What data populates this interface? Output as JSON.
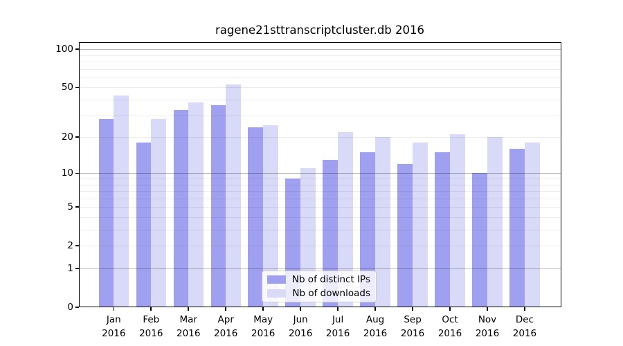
{
  "title": "ragene21sttranscriptcluster.db 2016",
  "legend": {
    "items": [
      {
        "label": "Nb of distinct IPs",
        "color": "#a0a0f0"
      },
      {
        "label": "Nb of downloads",
        "color": "#d9d9f8"
      }
    ]
  },
  "colors": {
    "distinct_ips_bar": "#a0a0f0",
    "downloads_bar": "#d9d9f8",
    "axis": "#000000",
    "background": "#ffffff"
  },
  "chart_data": {
    "type": "bar",
    "title": "ragene21sttranscriptcluster.db 2016",
    "categories": [
      "Jan",
      "Feb",
      "Mar",
      "Apr",
      "May",
      "Jun",
      "Jul",
      "Aug",
      "Sep",
      "Oct",
      "Nov",
      "Dec"
    ],
    "x_tick_second_line": "2016",
    "series": [
      {
        "name": "Nb of distinct IPs",
        "color": "#a0a0f0",
        "values": [
          28,
          18,
          33,
          36,
          24,
          9,
          13,
          15,
          12,
          15,
          10,
          16
        ]
      },
      {
        "name": "Nb of downloads",
        "color": "#d9d9f8",
        "values": [
          43,
          28,
          38,
          53,
          25,
          11,
          22,
          20,
          18,
          21,
          20,
          18
        ]
      }
    ],
    "xlabel": "",
    "ylabel": "",
    "y_axis": {
      "scale": "log1p",
      "tick_labels": [
        100,
        50,
        20,
        10,
        5,
        2,
        1,
        0
      ],
      "major_gridlines": [
        1,
        10,
        100
      ],
      "minor_gridlines": [
        2,
        3,
        4,
        5,
        6,
        7,
        8,
        9,
        20,
        30,
        40,
        50,
        60,
        70,
        80,
        90
      ],
      "ylim": [
        0,
        113
      ]
    },
    "grid": true,
    "legend_position": "lower-center"
  }
}
